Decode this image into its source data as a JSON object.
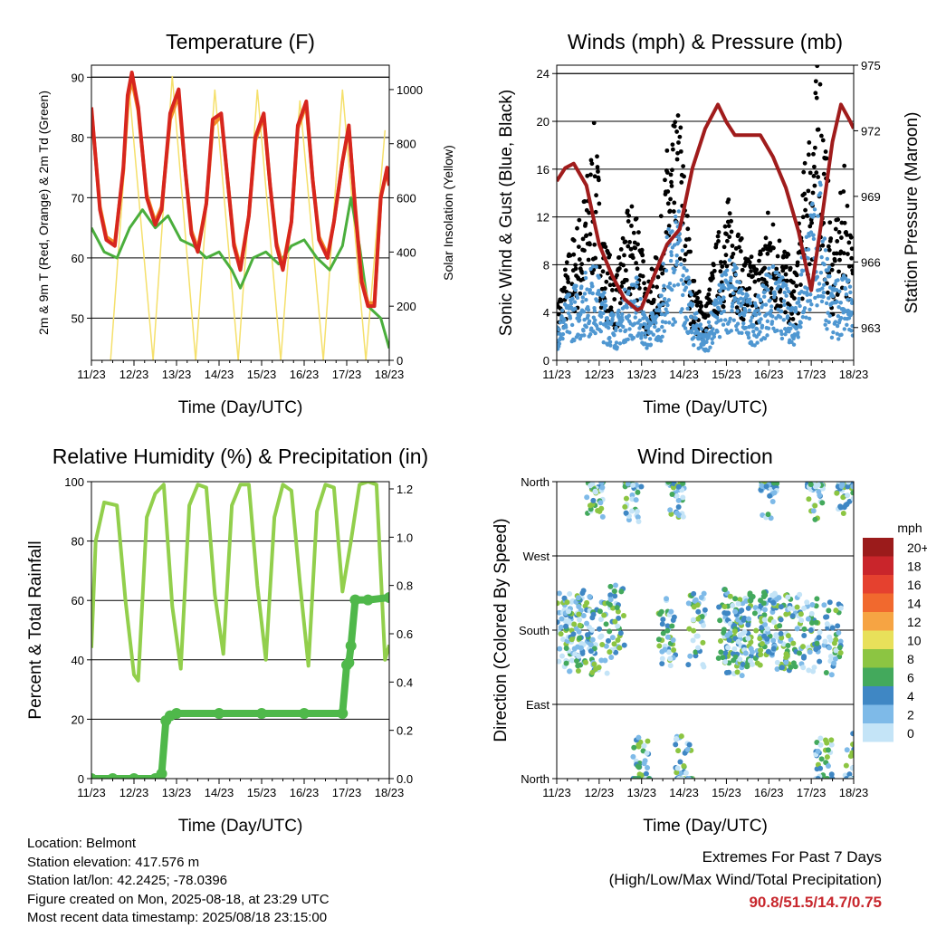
{
  "chart_data": [
    {
      "type": "line",
      "title": "Temperature (F)",
      "xlabel": "Time (Day/UTC)",
      "ylabel": "2m & 9m T (Red, Orange) & 2m Td (Green)",
      "ylabel_right": "Solar Insolation (Yellow)",
      "x_ticks": [
        "11/23",
        "12/23",
        "13/23",
        "14/23",
        "15/23",
        "16/23",
        "17/23",
        "18/23"
      ],
      "ylim": [
        43,
        92
      ],
      "y_ticks": [
        50,
        60,
        70,
        80,
        90
      ],
      "ylim_right": [
        0,
        1090
      ],
      "y_ticks_right": [
        0,
        200,
        400,
        600,
        800,
        1000
      ],
      "ref_lines": [
        90
      ],
      "colors": {
        "temp_2m": "#d7261e",
        "temp_9m": "#f28c28",
        "dewpoint": "#4aae3c",
        "solar": "#f5e06b"
      },
      "series": [
        {
          "name": "2m T",
          "axis": "left",
          "x": [
            0,
            0.2,
            0.35,
            0.55,
            0.75,
            0.85,
            0.95,
            1.1,
            1.3,
            1.5,
            1.65,
            1.85,
            2.05,
            2.2,
            2.35,
            2.5,
            2.7,
            2.85,
            3.05,
            3.2,
            3.35,
            3.5,
            3.7,
            3.85,
            4.05,
            4.2,
            4.35,
            4.5,
            4.7,
            4.85,
            5.05,
            5.2,
            5.35,
            5.55,
            5.7,
            5.9,
            6.05,
            6.2,
            6.35,
            6.5,
            6.65,
            6.8,
            6.95,
            7.0
          ],
          "y": [
            85,
            68,
            63,
            62,
            75,
            87,
            90.8,
            85,
            70,
            65.5,
            68,
            84,
            88,
            75,
            64,
            61,
            69,
            83,
            84,
            73,
            62,
            58,
            67,
            80,
            84,
            72,
            62,
            58,
            66,
            82,
            86,
            73,
            63,
            60,
            66,
            76,
            82,
            68,
            56,
            52,
            52,
            70,
            75,
            72
          ]
        },
        {
          "name": "9m T",
          "axis": "left",
          "x": [
            0,
            0.2,
            0.35,
            0.55,
            0.75,
            0.85,
            0.95,
            1.1,
            1.3,
            1.5,
            1.65,
            1.85,
            2.05,
            2.2,
            2.35,
            2.5,
            2.7,
            2.85,
            3.05,
            3.2,
            3.35,
            3.5,
            3.7,
            3.85,
            4.05,
            4.2,
            4.35,
            4.5,
            4.7,
            4.85,
            5.05,
            5.2,
            5.35,
            5.55,
            5.7,
            5.9,
            6.05,
            6.2,
            6.35,
            6.5,
            6.65,
            6.8,
            6.95,
            7.0
          ],
          "y": [
            84.5,
            68.5,
            63.5,
            62.5,
            74.5,
            86,
            89.5,
            84.5,
            70.5,
            66,
            68.5,
            83,
            87,
            75,
            64.5,
            61.5,
            69,
            82,
            83.5,
            73,
            62.5,
            58.5,
            67,
            79.5,
            83.5,
            72,
            62.5,
            58.5,
            66,
            81.5,
            85.5,
            73,
            63.5,
            60.5,
            66,
            76,
            81.5,
            68.5,
            56.5,
            52.5,
            52.5,
            70,
            74.5,
            72
          ]
        },
        {
          "name": "2m Td",
          "axis": "left",
          "x": [
            0,
            0.3,
            0.6,
            0.9,
            1.2,
            1.5,
            1.8,
            2.1,
            2.4,
            2.7,
            3.0,
            3.3,
            3.5,
            3.8,
            4.1,
            4.4,
            4.7,
            5.0,
            5.3,
            5.6,
            5.9,
            6.1,
            6.3,
            6.5,
            6.8,
            7.0
          ],
          "y": [
            65,
            61,
            60,
            65,
            68,
            65,
            67,
            63,
            62,
            60,
            61,
            58,
            55,
            60,
            61,
            59,
            62,
            63,
            60,
            58,
            62,
            70,
            62,
            52,
            50,
            45
          ]
        },
        {
          "name": "Solar Insolation",
          "axis": "right",
          "x": [
            0.45,
            0.9,
            1.45,
            1.9,
            2.45,
            2.9,
            3.45,
            3.9,
            4.45,
            4.9,
            5.45,
            5.9,
            6.45,
            6.9
          ],
          "y": [
            0,
            980,
            0,
            1050,
            0,
            1000,
            0,
            1000,
            0,
            960,
            0,
            1000,
            0,
            850
          ]
        }
      ]
    },
    {
      "type": "scatter",
      "title": "Winds (mph) & Pressure (mb)",
      "xlabel": "Time (Day/UTC)",
      "ylabel": "Sonic Wind & Gust (Blue, Black)",
      "ylabel_right": "Station Pressure (Maroon)",
      "x_ticks": [
        "11/23",
        "12/23",
        "13/23",
        "14/23",
        "15/23",
        "16/23",
        "17/23",
        "18/23"
      ],
      "ylim": [
        0,
        24.7
      ],
      "y_ticks": [
        0,
        4,
        8,
        12,
        16,
        20,
        24
      ],
      "ylim_right": [
        961.5,
        975
      ],
      "y_ticks_right": [
        963,
        966,
        969,
        972,
        975
      ],
      "ref_lines": [
        24
      ],
      "colors": {
        "wind": "#4f97d1",
        "gust": "#000000",
        "pressure": "#a01c1c"
      },
      "series": [
        {
          "name": "Sonic Wind",
          "axis": "left",
          "x": [
            0,
            0.3,
            0.6,
            0.9,
            1.1,
            1.4,
            1.6,
            1.9,
            2.1,
            2.4,
            2.6,
            2.9,
            3.2,
            3.5,
            3.8,
            4.1,
            4.4,
            4.7,
            5.0,
            5.3,
            5.6,
            5.9,
            6.2,
            6.5,
            6.8,
            7.0
          ],
          "y": [
            3,
            5,
            6,
            7,
            5,
            3,
            5,
            6,
            3,
            4,
            9,
            11,
            4,
            2,
            5,
            8,
            5,
            4,
            7,
            6,
            4,
            10,
            13,
            5,
            7,
            4
          ]
        },
        {
          "name": "Gust",
          "axis": "left",
          "x": [
            0,
            0.3,
            0.6,
            0.9,
            1.1,
            1.4,
            1.6,
            1.9,
            2.1,
            2.4,
            2.6,
            2.9,
            3.2,
            3.5,
            3.8,
            4.1,
            4.4,
            4.7,
            5.0,
            5.3,
            5.6,
            5.9,
            6.2,
            6.5,
            6.8,
            7.0
          ],
          "y": [
            4,
            8,
            11,
            17,
            9,
            6,
            10,
            12,
            5,
            8,
            15,
            18,
            6,
            4,
            9,
            12,
            8,
            7,
            11,
            9,
            6,
            16,
            22,
            8,
            14,
            7
          ]
        },
        {
          "name": "Station Pressure",
          "axis": "right",
          "x": [
            0,
            0.2,
            0.4,
            0.7,
            1.0,
            1.3,
            1.6,
            1.9,
            2.0,
            2.3,
            2.6,
            2.9,
            3.2,
            3.5,
            3.8,
            4.0,
            4.2,
            4.5,
            4.8,
            5.1,
            5.4,
            5.7,
            6.0,
            6.2,
            6.5,
            6.7,
            6.9,
            7.0
          ],
          "y": [
            969.7,
            970.3,
            970.5,
            969.5,
            966.8,
            965.4,
            964.3,
            963.8,
            963.9,
            965.4,
            966.8,
            967.5,
            970.3,
            972.1,
            973.2,
            972.4,
            971.8,
            971.8,
            971.8,
            970.8,
            969.4,
            967.4,
            964.7,
            967.3,
            971.5,
            973.2,
            972.5,
            972.1
          ]
        }
      ]
    },
    {
      "type": "line",
      "title": "Relative Humidity (%) & Precipitation (in)",
      "xlabel": "Time (Day/UTC)",
      "ylabel": "Percent & Total Rainfall",
      "x_ticks": [
        "11/23",
        "12/23",
        "13/23",
        "14/23",
        "15/23",
        "16/23",
        "17/23",
        "18/23"
      ],
      "ylim": [
        0,
        100
      ],
      "y_ticks": [
        0,
        20,
        40,
        60,
        80,
        100
      ],
      "ylim_right": [
        0,
        1.23
      ],
      "y_ticks_right": [
        0.0,
        0.2,
        0.4,
        0.6,
        0.8,
        1.0,
        1.2
      ],
      "colors": {
        "rh": "#92cf4c",
        "precip": "#4fb84a"
      },
      "series": [
        {
          "name": "Relative Humidity",
          "axis": "left",
          "x": [
            0,
            0.1,
            0.3,
            0.6,
            0.8,
            1.0,
            1.1,
            1.3,
            1.5,
            1.7,
            1.9,
            2.1,
            2.3,
            2.5,
            2.7,
            2.9,
            3.1,
            3.3,
            3.5,
            3.7,
            3.9,
            4.1,
            4.3,
            4.5,
            4.7,
            4.9,
            5.1,
            5.3,
            5.5,
            5.7,
            5.9,
            6.1,
            6.3,
            6.5,
            6.7,
            6.9,
            7.0
          ],
          "y": [
            44,
            80,
            93,
            92,
            60,
            35,
            33,
            88,
            96,
            99,
            58,
            37,
            92,
            99,
            98,
            62,
            42,
            92,
            99,
            99,
            65,
            40,
            88,
            99,
            97,
            66,
            38,
            90,
            99,
            98,
            63,
            80,
            99,
            100,
            99,
            40,
            45
          ]
        },
        {
          "name": "Total Precipitation",
          "axis": "right",
          "x": [
            0,
            0.5,
            1.0,
            1.5,
            1.65,
            1.75,
            1.85,
            2.0,
            3.0,
            4.0,
            5.0,
            5.9,
            6.0,
            6.05,
            6.1,
            6.2,
            6.5,
            7.0
          ],
          "y": [
            0,
            0,
            0,
            0,
            0.02,
            0.24,
            0.26,
            0.27,
            0.27,
            0.27,
            0.27,
            0.27,
            0.47,
            0.48,
            0.55,
            0.74,
            0.74,
            0.75
          ]
        }
      ]
    },
    {
      "type": "scatter",
      "title": "Wind Direction",
      "xlabel": "Time (Day/UTC)",
      "ylabel": "Direction (Colored By Speed)",
      "x_ticks": [
        "11/23",
        "12/23",
        "13/23",
        "14/23",
        "15/23",
        "16/23",
        "17/23",
        "18/23"
      ],
      "y_ticks": [
        "North",
        "West",
        "South",
        "East",
        "North"
      ],
      "ylim": [
        0,
        360
      ],
      "legend": {
        "title": "mph",
        "placement": "right",
        "labels": [
          "20+",
          "18",
          "16",
          "14",
          "12",
          "10",
          "8",
          "6",
          "4",
          "2",
          "0"
        ],
        "colors": [
          "#9b1b1b",
          "#c9252b",
          "#e5412f",
          "#f1692e",
          "#f6a443",
          "#e8e05a",
          "#8cc542",
          "#43a95c",
          "#3f87c4",
          "#7ebae8",
          "#c4e4f7"
        ]
      },
      "series": [
        {
          "name": "South cluster",
          "x": [
            0.2,
            0.4,
            0.6,
            1.0,
            1.4,
            2.6,
            3.3,
            4.0,
            4.2,
            4.4,
            4.7,
            5.0,
            5.3,
            5.6,
            6.0,
            6.5
          ],
          "y": [
            180,
            175,
            185,
            170,
            190,
            175,
            180,
            185,
            170,
            175,
            180,
            185,
            175,
            180,
            175,
            170
          ]
        },
        {
          "name": "North cluster",
          "x": [
            0.9,
            1.8,
            2.0,
            2.8,
            3.0,
            5.0,
            6.1,
            6.3,
            6.8,
            7.0
          ],
          "y": [
            360,
            355,
            5,
            360,
            10,
            360,
            355,
            5,
            360,
            10
          ]
        }
      ]
    }
  ],
  "info": {
    "location": "Location: Belmont",
    "elevation": "Station elevation: 417.576 m",
    "latlon": "Station lat/lon: 42.2425; -78.0396",
    "created": "Figure created on Mon, 2025-08-18, at 23:29 UTC",
    "timestamp": "Most recent data timestamp: 2025/08/18 23:15:00"
  },
  "extremes": {
    "title": "Extremes For Past 7 Days",
    "subtitle": "(High/Low/Max Wind/Total Precipitation)",
    "values": "90.8/51.5/14.7/0.75"
  }
}
